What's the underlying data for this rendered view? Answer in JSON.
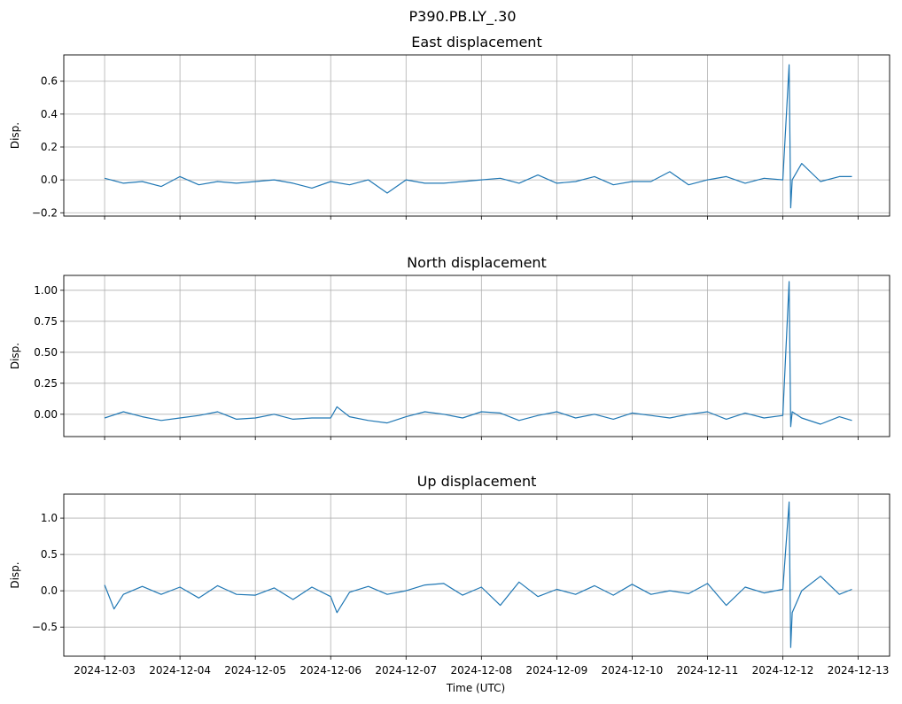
{
  "figure": {
    "suptitle": "P390.PB.LY_.30",
    "xlabel": "Time (UTC)",
    "x_ticks": [
      "2024-12-03",
      "2024-12-04",
      "2024-12-05",
      "2024-12-06",
      "2024-12-07",
      "2024-12-08",
      "2024-12-09",
      "2024-12-10",
      "2024-12-11",
      "2024-12-12",
      "2024-12-13"
    ],
    "line_color": "#1f77b4",
    "grid_color": "#b0b0b0"
  },
  "chart_data": [
    {
      "type": "line",
      "title": "East displacement",
      "ylabel": "Disp.",
      "xlim": [
        "2024-12-02T11:00:00",
        "2024-12-13T10:00:00"
      ],
      "ylim": [
        -0.22,
        0.76
      ],
      "y_ticks": [
        -0.2,
        0.0,
        0.2,
        0.4,
        0.6
      ],
      "y_tick_labels": [
        "−0.2",
        "0.0",
        "0.2",
        "0.4",
        "0.6"
      ],
      "grid": true,
      "series": [
        {
          "x": [
            "2024-12-03T00:00:00",
            "2024-12-03T06:00:00",
            "2024-12-03T12:00:00",
            "2024-12-03T18:00:00",
            "2024-12-04T00:00:00",
            "2024-12-04T06:00:00",
            "2024-12-04T12:00:00",
            "2024-12-04T18:00:00",
            "2024-12-05T00:00:00",
            "2024-12-05T06:00:00",
            "2024-12-05T12:00:00",
            "2024-12-05T18:00:00",
            "2024-12-06T00:00:00",
            "2024-12-06T06:00:00",
            "2024-12-06T12:00:00",
            "2024-12-06T18:00:00",
            "2024-12-07T00:00:00",
            "2024-12-07T06:00:00",
            "2024-12-07T12:00:00",
            "2024-12-07T18:00:00",
            "2024-12-08T00:00:00",
            "2024-12-08T06:00:00",
            "2024-12-08T12:00:00",
            "2024-12-08T18:00:00",
            "2024-12-09T00:00:00",
            "2024-12-09T06:00:00",
            "2024-12-09T12:00:00",
            "2024-12-09T18:00:00",
            "2024-12-10T00:00:00",
            "2024-12-10T06:00:00",
            "2024-12-10T12:00:00",
            "2024-12-10T18:00:00",
            "2024-12-11T00:00:00",
            "2024-12-11T06:00:00",
            "2024-12-11T12:00:00",
            "2024-12-11T18:00:00",
            "2024-12-12T00:00:00",
            "2024-12-12T02:00:00",
            "2024-12-12T02:30:00",
            "2024-12-12T03:00:00",
            "2024-12-12T06:00:00",
            "2024-12-12T12:00:00",
            "2024-12-12T18:00:00",
            "2024-12-12T22:00:00"
          ],
          "y": [
            0.01,
            -0.02,
            -0.01,
            -0.04,
            0.02,
            -0.03,
            -0.01,
            -0.02,
            -0.01,
            0.0,
            -0.02,
            -0.05,
            -0.01,
            -0.03,
            0.0,
            -0.08,
            0.0,
            -0.02,
            -0.02,
            -0.01,
            0.0,
            0.01,
            -0.02,
            0.03,
            -0.02,
            -0.01,
            0.02,
            -0.03,
            -0.01,
            -0.01,
            0.05,
            -0.03,
            0.0,
            0.02,
            -0.02,
            0.01,
            0.0,
            0.7,
            -0.17,
            0.0,
            0.1,
            -0.01,
            0.02,
            0.02
          ]
        }
      ]
    },
    {
      "type": "line",
      "title": "North displacement",
      "ylabel": "Disp.",
      "xlim": [
        "2024-12-02T11:00:00",
        "2024-12-13T10:00:00"
      ],
      "ylim": [
        -0.18,
        1.12
      ],
      "y_ticks": [
        0.0,
        0.25,
        0.5,
        0.75,
        1.0
      ],
      "y_tick_labels": [
        "0.00",
        "0.25",
        "0.50",
        "0.75",
        "1.00"
      ],
      "grid": true,
      "series": [
        {
          "x": [
            "2024-12-03T00:00:00",
            "2024-12-03T06:00:00",
            "2024-12-03T12:00:00",
            "2024-12-03T18:00:00",
            "2024-12-04T00:00:00",
            "2024-12-04T06:00:00",
            "2024-12-04T12:00:00",
            "2024-12-04T18:00:00",
            "2024-12-05T00:00:00",
            "2024-12-05T06:00:00",
            "2024-12-05T12:00:00",
            "2024-12-05T18:00:00",
            "2024-12-06T00:00:00",
            "2024-12-06T02:00:00",
            "2024-12-06T06:00:00",
            "2024-12-06T12:00:00",
            "2024-12-06T18:00:00",
            "2024-12-07T00:00:00",
            "2024-12-07T06:00:00",
            "2024-12-07T12:00:00",
            "2024-12-07T18:00:00",
            "2024-12-08T00:00:00",
            "2024-12-08T06:00:00",
            "2024-12-08T12:00:00",
            "2024-12-08T18:00:00",
            "2024-12-09T00:00:00",
            "2024-12-09T06:00:00",
            "2024-12-09T12:00:00",
            "2024-12-09T18:00:00",
            "2024-12-10T00:00:00",
            "2024-12-10T06:00:00",
            "2024-12-10T12:00:00",
            "2024-12-10T18:00:00",
            "2024-12-11T00:00:00",
            "2024-12-11T06:00:00",
            "2024-12-11T12:00:00",
            "2024-12-11T18:00:00",
            "2024-12-12T00:00:00",
            "2024-12-12T02:00:00",
            "2024-12-12T02:30:00",
            "2024-12-12T03:00:00",
            "2024-12-12T06:00:00",
            "2024-12-12T12:00:00",
            "2024-12-12T18:00:00",
            "2024-12-12T22:00:00"
          ],
          "y": [
            -0.03,
            0.02,
            -0.02,
            -0.05,
            -0.03,
            -0.01,
            0.02,
            -0.04,
            -0.03,
            0.0,
            -0.04,
            -0.03,
            -0.03,
            0.06,
            -0.02,
            -0.05,
            -0.07,
            -0.02,
            0.02,
            0.0,
            -0.03,
            0.02,
            0.01,
            -0.05,
            -0.01,
            0.02,
            -0.03,
            0.0,
            -0.04,
            0.01,
            -0.01,
            -0.03,
            0.0,
            0.02,
            -0.04,
            0.01,
            -0.03,
            -0.01,
            1.07,
            -0.1,
            0.02,
            -0.03,
            -0.08,
            -0.02,
            -0.05
          ]
        }
      ]
    },
    {
      "type": "line",
      "title": "Up displacement",
      "ylabel": "Disp.",
      "xlim": [
        "2024-12-02T11:00:00",
        "2024-12-13T10:00:00"
      ],
      "ylim": [
        -0.9,
        1.33
      ],
      "y_ticks": [
        -0.5,
        0.0,
        0.5,
        1.0
      ],
      "y_tick_labels": [
        "−0.5",
        "0.0",
        "0.5",
        "1.0"
      ],
      "grid": true,
      "series": [
        {
          "x": [
            "2024-12-03T00:00:00",
            "2024-12-03T03:00:00",
            "2024-12-03T06:00:00",
            "2024-12-03T12:00:00",
            "2024-12-03T18:00:00",
            "2024-12-04T00:00:00",
            "2024-12-04T06:00:00",
            "2024-12-04T12:00:00",
            "2024-12-04T18:00:00",
            "2024-12-05T00:00:00",
            "2024-12-05T06:00:00",
            "2024-12-05T12:00:00",
            "2024-12-05T18:00:00",
            "2024-12-06T00:00:00",
            "2024-12-06T02:00:00",
            "2024-12-06T06:00:00",
            "2024-12-06T12:00:00",
            "2024-12-06T18:00:00",
            "2024-12-07T00:00:00",
            "2024-12-07T06:00:00",
            "2024-12-07T12:00:00",
            "2024-12-07T18:00:00",
            "2024-12-08T00:00:00",
            "2024-12-08T06:00:00",
            "2024-12-08T12:00:00",
            "2024-12-08T18:00:00",
            "2024-12-09T00:00:00",
            "2024-12-09T06:00:00",
            "2024-12-09T12:00:00",
            "2024-12-09T18:00:00",
            "2024-12-10T00:00:00",
            "2024-12-10T06:00:00",
            "2024-12-10T12:00:00",
            "2024-12-10T18:00:00",
            "2024-12-11T00:00:00",
            "2024-12-11T06:00:00",
            "2024-12-11T12:00:00",
            "2024-12-11T18:00:00",
            "2024-12-12T00:00:00",
            "2024-12-12T02:00:00",
            "2024-12-12T02:30:00",
            "2024-12-12T03:00:00",
            "2024-12-12T06:00:00",
            "2024-12-12T12:00:00",
            "2024-12-12T18:00:00",
            "2024-12-12T22:00:00"
          ],
          "y": [
            0.08,
            -0.25,
            -0.05,
            0.06,
            -0.05,
            0.05,
            -0.1,
            0.07,
            -0.05,
            -0.06,
            0.04,
            -0.12,
            0.05,
            -0.08,
            -0.3,
            -0.02,
            0.06,
            -0.05,
            0.0,
            0.08,
            0.1,
            -0.06,
            0.05,
            -0.2,
            0.12,
            -0.08,
            0.02,
            -0.05,
            0.07,
            -0.06,
            0.09,
            -0.05,
            0.0,
            -0.04,
            0.1,
            -0.2,
            0.05,
            -0.03,
            0.02,
            1.22,
            -0.78,
            -0.3,
            0.0,
            0.2,
            -0.05,
            0.02
          ]
        }
      ]
    }
  ]
}
